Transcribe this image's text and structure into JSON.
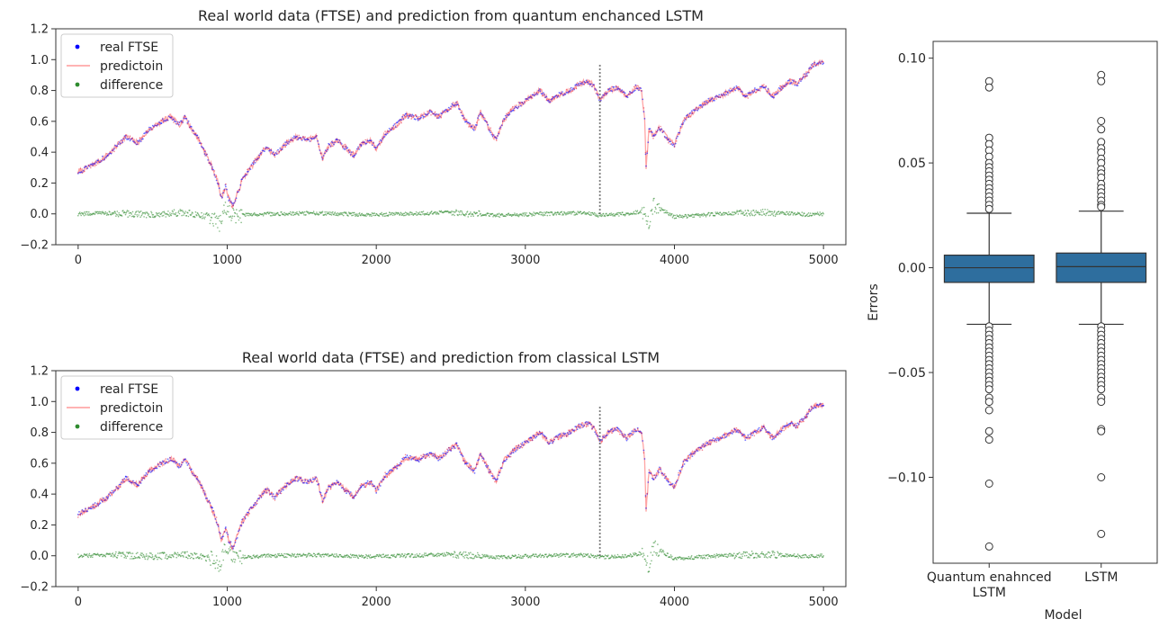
{
  "chart_data": [
    {
      "type": "line",
      "title": "Real world data (FTSE) and prediction from quantum enchanced LSTM",
      "xlim": [
        -150,
        5150
      ],
      "ylim": [
        -0.2,
        1.2
      ],
      "xticks": [
        0,
        1000,
        2000,
        3000,
        4000,
        5000
      ],
      "yticks": [
        -0.2,
        0.0,
        0.2,
        0.4,
        0.6,
        0.8,
        1.0,
        1.2
      ],
      "grid": false,
      "legend": "top-left",
      "split_marker_x": 3500,
      "split_marker_ylim": [
        0.0,
        0.98
      ],
      "series": [
        {
          "name": "real FTSE",
          "style": "scatter",
          "color": "#0000ff",
          "x": [
            0,
            100,
            200,
            320,
            400,
            480,
            560,
            620,
            680,
            720,
            760,
            800,
            850,
            900,
            940,
            960,
            990,
            1010,
            1040,
            1100,
            1180,
            1260,
            1320,
            1400,
            1460,
            1540,
            1600,
            1640,
            1660,
            1680,
            1740,
            1800,
            1850,
            1900,
            1960,
            2000,
            2060,
            2140,
            2200,
            2280,
            2360,
            2420,
            2480,
            2540,
            2600,
            2660,
            2700,
            2760,
            2800,
            2860,
            2920,
            2980,
            3040,
            3100,
            3160,
            3220,
            3300,
            3360,
            3420,
            3460,
            3500,
            3560,
            3620,
            3680,
            3740,
            3780,
            3800,
            3810,
            3830,
            3860,
            3900,
            3960,
            4000,
            4060,
            4120,
            4180,
            4240,
            4300,
            4360,
            4420,
            4480,
            4540,
            4600,
            4660,
            4720,
            4780,
            4820,
            4860,
            4890,
            4920,
            4960,
            5000
          ],
          "y": [
            0.27,
            0.32,
            0.38,
            0.5,
            0.46,
            0.55,
            0.6,
            0.63,
            0.58,
            0.63,
            0.55,
            0.5,
            0.4,
            0.3,
            0.2,
            0.1,
            0.18,
            0.1,
            0.05,
            0.22,
            0.33,
            0.43,
            0.38,
            0.46,
            0.5,
            0.48,
            0.5,
            0.36,
            0.4,
            0.44,
            0.48,
            0.42,
            0.38,
            0.45,
            0.48,
            0.42,
            0.52,
            0.58,
            0.64,
            0.62,
            0.66,
            0.63,
            0.68,
            0.72,
            0.6,
            0.55,
            0.66,
            0.55,
            0.48,
            0.62,
            0.68,
            0.72,
            0.76,
            0.8,
            0.73,
            0.77,
            0.8,
            0.84,
            0.86,
            0.83,
            0.74,
            0.8,
            0.82,
            0.76,
            0.82,
            0.8,
            0.62,
            0.3,
            0.55,
            0.5,
            0.56,
            0.48,
            0.45,
            0.6,
            0.66,
            0.7,
            0.74,
            0.76,
            0.79,
            0.82,
            0.76,
            0.8,
            0.83,
            0.76,
            0.82,
            0.86,
            0.84,
            0.88,
            0.91,
            0.96,
            0.98,
            0.98
          ]
        },
        {
          "name": "predictoin",
          "style": "line",
          "color": "#ff9a9a",
          "x": [
            0,
            100,
            200,
            320,
            400,
            480,
            560,
            620,
            680,
            720,
            760,
            800,
            850,
            900,
            940,
            960,
            990,
            1010,
            1040,
            1100,
            1180,
            1260,
            1320,
            1400,
            1460,
            1540,
            1600,
            1640,
            1660,
            1680,
            1740,
            1800,
            1850,
            1900,
            1960,
            2000,
            2060,
            2140,
            2200,
            2280,
            2360,
            2420,
            2480,
            2540,
            2600,
            2660,
            2700,
            2760,
            2800,
            2860,
            2920,
            2980,
            3040,
            3100,
            3160,
            3220,
            3300,
            3360,
            3420,
            3460,
            3500,
            3560,
            3620,
            3680,
            3740,
            3780,
            3800,
            3810,
            3830,
            3860,
            3900,
            3960,
            4000,
            4060,
            4120,
            4180,
            4240,
            4300,
            4360,
            4420,
            4480,
            4540,
            4600,
            4660,
            4720,
            4780,
            4820,
            4860,
            4890,
            4920,
            4960,
            5000
          ],
          "y": [
            0.27,
            0.32,
            0.38,
            0.5,
            0.46,
            0.55,
            0.6,
            0.63,
            0.58,
            0.63,
            0.55,
            0.5,
            0.4,
            0.3,
            0.2,
            0.1,
            0.18,
            0.1,
            0.05,
            0.22,
            0.33,
            0.43,
            0.38,
            0.46,
            0.5,
            0.48,
            0.5,
            0.36,
            0.4,
            0.44,
            0.48,
            0.42,
            0.38,
            0.45,
            0.48,
            0.42,
            0.52,
            0.58,
            0.64,
            0.62,
            0.66,
            0.63,
            0.68,
            0.72,
            0.6,
            0.55,
            0.66,
            0.55,
            0.48,
            0.62,
            0.68,
            0.72,
            0.76,
            0.8,
            0.73,
            0.77,
            0.8,
            0.84,
            0.86,
            0.83,
            0.74,
            0.8,
            0.82,
            0.76,
            0.82,
            0.8,
            0.62,
            0.3,
            0.55,
            0.5,
            0.56,
            0.48,
            0.45,
            0.6,
            0.66,
            0.7,
            0.74,
            0.76,
            0.79,
            0.82,
            0.76,
            0.8,
            0.83,
            0.76,
            0.82,
            0.86,
            0.84,
            0.88,
            0.91,
            0.96,
            0.98,
            0.98
          ]
        },
        {
          "name": "difference",
          "style": "scatter",
          "color": "#2e8b2e",
          "x": [
            0,
            250,
            500,
            700,
            900,
            950,
            980,
            1050,
            1300,
            1600,
            1900,
            2200,
            2500,
            2800,
            3100,
            3400,
            3500,
            3700,
            3800,
            3830,
            3860,
            4000,
            4300,
            4600,
            4900,
            5000
          ],
          "y": [
            0.0,
            0.005,
            -0.005,
            0.01,
            -0.02,
            -0.07,
            0.03,
            -0.01,
            0.0,
            0.005,
            -0.005,
            0.0,
            0.01,
            -0.01,
            0.0,
            0.005,
            -0.01,
            0.0,
            0.02,
            -0.08,
            0.06,
            -0.02,
            0.0,
            0.01,
            -0.005,
            0.0
          ]
        }
      ]
    },
    {
      "type": "line",
      "title": "Real world data (FTSE) and prediction from classical LSTM",
      "xlim": [
        -150,
        5150
      ],
      "ylim": [
        -0.2,
        1.2
      ],
      "xticks": [
        0,
        1000,
        2000,
        3000,
        4000,
        5000
      ],
      "yticks": [
        -0.2,
        0.0,
        0.2,
        0.4,
        0.6,
        0.8,
        1.0,
        1.2
      ],
      "grid": false,
      "legend": "top-left",
      "split_marker_x": 3500,
      "split_marker_ylim": [
        0.0,
        0.98
      ],
      "series": [
        {
          "name": "real FTSE",
          "style": "scatter",
          "color": "#0000ff",
          "x": [
            0,
            100,
            200,
            320,
            400,
            480,
            560,
            620,
            680,
            720,
            760,
            800,
            850,
            900,
            940,
            960,
            990,
            1010,
            1040,
            1100,
            1180,
            1260,
            1320,
            1400,
            1460,
            1540,
            1600,
            1640,
            1660,
            1680,
            1740,
            1800,
            1850,
            1900,
            1960,
            2000,
            2060,
            2140,
            2200,
            2280,
            2360,
            2420,
            2480,
            2540,
            2600,
            2660,
            2700,
            2760,
            2800,
            2860,
            2920,
            2980,
            3040,
            3100,
            3160,
            3220,
            3300,
            3360,
            3420,
            3460,
            3500,
            3560,
            3620,
            3680,
            3740,
            3780,
            3800,
            3810,
            3830,
            3860,
            3900,
            3960,
            4000,
            4060,
            4120,
            4180,
            4240,
            4300,
            4360,
            4420,
            4480,
            4540,
            4600,
            4660,
            4720,
            4780,
            4820,
            4860,
            4890,
            4920,
            4960,
            5000
          ],
          "y": [
            0.27,
            0.32,
            0.38,
            0.5,
            0.46,
            0.55,
            0.6,
            0.63,
            0.58,
            0.63,
            0.55,
            0.5,
            0.4,
            0.3,
            0.2,
            0.1,
            0.18,
            0.1,
            0.05,
            0.22,
            0.33,
            0.43,
            0.38,
            0.46,
            0.5,
            0.48,
            0.5,
            0.36,
            0.4,
            0.44,
            0.48,
            0.42,
            0.38,
            0.45,
            0.48,
            0.42,
            0.52,
            0.58,
            0.64,
            0.62,
            0.66,
            0.63,
            0.68,
            0.72,
            0.6,
            0.55,
            0.66,
            0.55,
            0.48,
            0.62,
            0.68,
            0.72,
            0.76,
            0.8,
            0.73,
            0.77,
            0.8,
            0.84,
            0.86,
            0.83,
            0.74,
            0.8,
            0.82,
            0.76,
            0.82,
            0.8,
            0.62,
            0.3,
            0.55,
            0.5,
            0.56,
            0.48,
            0.45,
            0.6,
            0.66,
            0.7,
            0.74,
            0.76,
            0.79,
            0.82,
            0.76,
            0.8,
            0.83,
            0.76,
            0.82,
            0.86,
            0.84,
            0.88,
            0.91,
            0.96,
            0.98,
            0.98
          ]
        },
        {
          "name": "predictoin",
          "style": "line",
          "color": "#ff9a9a",
          "x": [
            0,
            100,
            200,
            320,
            400,
            480,
            560,
            620,
            680,
            720,
            760,
            800,
            850,
            900,
            940,
            960,
            990,
            1010,
            1040,
            1100,
            1180,
            1260,
            1320,
            1400,
            1460,
            1540,
            1600,
            1640,
            1660,
            1680,
            1740,
            1800,
            1850,
            1900,
            1960,
            2000,
            2060,
            2140,
            2200,
            2280,
            2360,
            2420,
            2480,
            2540,
            2600,
            2660,
            2700,
            2760,
            2800,
            2860,
            2920,
            2980,
            3040,
            3100,
            3160,
            3220,
            3300,
            3360,
            3420,
            3460,
            3500,
            3560,
            3620,
            3680,
            3740,
            3780,
            3800,
            3810,
            3830,
            3860,
            3900,
            3960,
            4000,
            4060,
            4120,
            4180,
            4240,
            4300,
            4360,
            4420,
            4480,
            4540,
            4600,
            4660,
            4720,
            4780,
            4820,
            4860,
            4890,
            4920,
            4960,
            5000
          ],
          "y": [
            0.27,
            0.32,
            0.38,
            0.5,
            0.46,
            0.55,
            0.6,
            0.63,
            0.58,
            0.63,
            0.55,
            0.5,
            0.4,
            0.3,
            0.2,
            0.1,
            0.18,
            0.1,
            0.05,
            0.22,
            0.33,
            0.43,
            0.38,
            0.46,
            0.5,
            0.48,
            0.5,
            0.36,
            0.4,
            0.44,
            0.48,
            0.42,
            0.38,
            0.45,
            0.48,
            0.42,
            0.52,
            0.58,
            0.64,
            0.62,
            0.66,
            0.63,
            0.68,
            0.72,
            0.6,
            0.55,
            0.66,
            0.55,
            0.48,
            0.62,
            0.68,
            0.72,
            0.76,
            0.8,
            0.73,
            0.77,
            0.8,
            0.84,
            0.86,
            0.83,
            0.74,
            0.8,
            0.82,
            0.76,
            0.82,
            0.8,
            0.62,
            0.3,
            0.55,
            0.5,
            0.56,
            0.48,
            0.45,
            0.6,
            0.66,
            0.7,
            0.74,
            0.76,
            0.79,
            0.82,
            0.76,
            0.8,
            0.83,
            0.76,
            0.82,
            0.86,
            0.84,
            0.88,
            0.91,
            0.96,
            0.98,
            0.98
          ]
        },
        {
          "name": "difference",
          "style": "scatter",
          "color": "#2e8b2e",
          "x": [
            0,
            250,
            500,
            700,
            900,
            950,
            980,
            1050,
            1300,
            1600,
            1900,
            2200,
            2500,
            2800,
            3100,
            3400,
            3500,
            3700,
            3800,
            3830,
            3860,
            4000,
            4300,
            4600,
            4900,
            5000
          ],
          "y": [
            0.0,
            0.005,
            -0.005,
            0.01,
            -0.02,
            -0.07,
            0.03,
            -0.01,
            0.0,
            0.005,
            -0.005,
            0.0,
            0.01,
            -0.01,
            0.0,
            0.005,
            -0.01,
            0.0,
            0.02,
            -0.08,
            0.06,
            -0.02,
            0.0,
            0.01,
            -0.005,
            0.0
          ]
        }
      ]
    },
    {
      "type": "box",
      "title": "",
      "xlabel": "Model",
      "ylabel": "Errors",
      "ylim": [
        -0.141,
        0.108
      ],
      "yticks": [
        -0.1,
        -0.05,
        0.0,
        0.05,
        0.1
      ],
      "ytick_labels": [
        "−0.10",
        "−0.05",
        "0.00",
        "0.05",
        "0.10"
      ],
      "categories": [
        "Quantum enahnced LSTM",
        "LSTM"
      ],
      "category_lines": [
        [
          "Quantum enahnced",
          "LSTM"
        ],
        [
          "LSTM"
        ]
      ],
      "color": "#2e6e9e",
      "boxes": [
        {
          "q1": -0.007,
          "median": 0.0,
          "q3": 0.006,
          "whisker_low": -0.027,
          "whisker_high": 0.026,
          "outliers": [
            0.089,
            0.086,
            0.062,
            0.059,
            0.056,
            0.053,
            0.05,
            0.048,
            0.046,
            0.044,
            0.042,
            0.04,
            0.038,
            0.036,
            0.034,
            0.032,
            0.03,
            0.028,
            -0.028,
            -0.03,
            -0.032,
            -0.034,
            -0.036,
            -0.038,
            -0.04,
            -0.042,
            -0.044,
            -0.046,
            -0.048,
            -0.05,
            -0.052,
            -0.054,
            -0.056,
            -0.058,
            -0.062,
            -0.064,
            -0.068,
            -0.078,
            -0.082,
            -0.103,
            -0.133
          ]
        },
        {
          "q1": -0.007,
          "median": 0.0005,
          "q3": 0.007,
          "whisker_low": -0.027,
          "whisker_high": 0.027,
          "outliers": [
            0.092,
            0.089,
            0.07,
            0.066,
            0.06,
            0.057,
            0.055,
            0.052,
            0.05,
            0.047,
            0.045,
            0.043,
            0.04,
            0.038,
            0.036,
            0.034,
            0.032,
            0.03,
            0.029,
            -0.028,
            -0.03,
            -0.032,
            -0.034,
            -0.036,
            -0.038,
            -0.04,
            -0.042,
            -0.044,
            -0.046,
            -0.048,
            -0.05,
            -0.052,
            -0.054,
            -0.056,
            -0.058,
            -0.062,
            -0.064,
            -0.077,
            -0.078,
            -0.1,
            -0.127
          ]
        }
      ]
    }
  ]
}
